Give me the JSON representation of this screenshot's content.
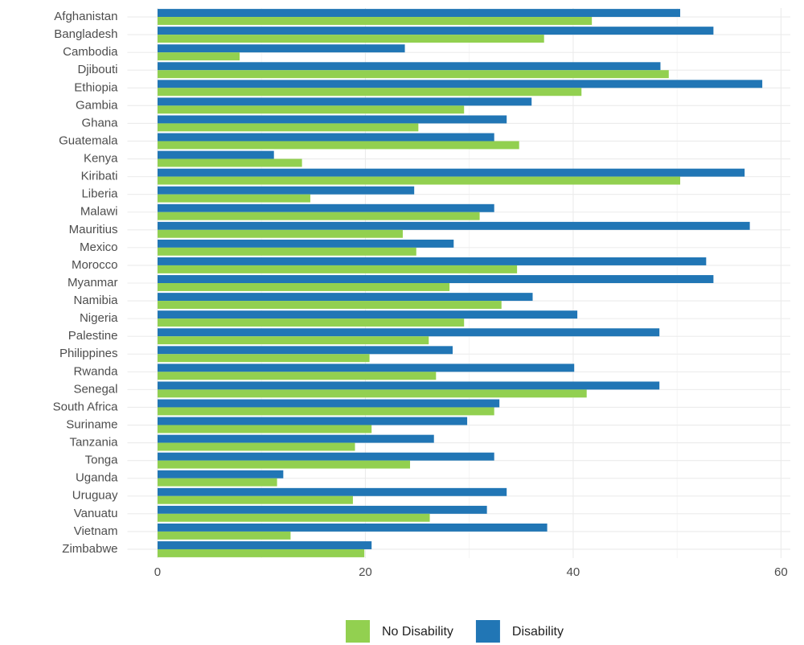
{
  "chart_data": {
    "type": "bar",
    "orientation": "horizontal",
    "categories": [
      "Afghanistan",
      "Bangladesh",
      "Cambodia",
      "Djibouti",
      "Ethiopia",
      "Gambia",
      "Ghana",
      "Guatemala",
      "Kenya",
      "Kiribati",
      "Liberia",
      "Malawi",
      "Mauritius",
      "Mexico",
      "Morocco",
      "Myanmar",
      "Namibia",
      "Nigeria",
      "Palestine",
      "Philippines",
      "Rwanda",
      "Senegal",
      "South Africa",
      "Suriname",
      "Tanzania",
      "Tonga",
      "Uganda",
      "Uruguay",
      "Vanuatu",
      "Vietnam",
      "Zimbabwe"
    ],
    "series": [
      {
        "name": "No Disability",
        "color": "#92d050",
        "values": [
          41.8,
          37.2,
          7.9,
          49.2,
          40.8,
          29.5,
          25.1,
          34.8,
          13.9,
          50.3,
          14.7,
          31.0,
          23.6,
          24.9,
          34.6,
          28.1,
          33.1,
          29.5,
          26.1,
          20.4,
          26.8,
          41.3,
          32.4,
          20.6,
          19.0,
          24.3,
          11.5,
          18.8,
          26.2,
          12.8,
          19.9
        ]
      },
      {
        "name": "Disability",
        "color": "#2176b5",
        "values": [
          50.3,
          53.5,
          23.8,
          48.4,
          58.2,
          36.0,
          33.6,
          32.4,
          11.2,
          56.5,
          24.7,
          32.4,
          57.0,
          28.5,
          52.8,
          53.5,
          36.1,
          40.4,
          48.3,
          28.4,
          40.1,
          48.3,
          32.9,
          29.8,
          26.6,
          32.4,
          12.1,
          33.6,
          31.7,
          37.5,
          20.6
        ]
      }
    ],
    "xlim": [
      -2.9,
      60.9
    ],
    "xticks": [
      0,
      20,
      40,
      60
    ],
    "x_minor_grid": [
      10,
      30,
      50
    ],
    "grid": true,
    "legend": "bottom"
  }
}
